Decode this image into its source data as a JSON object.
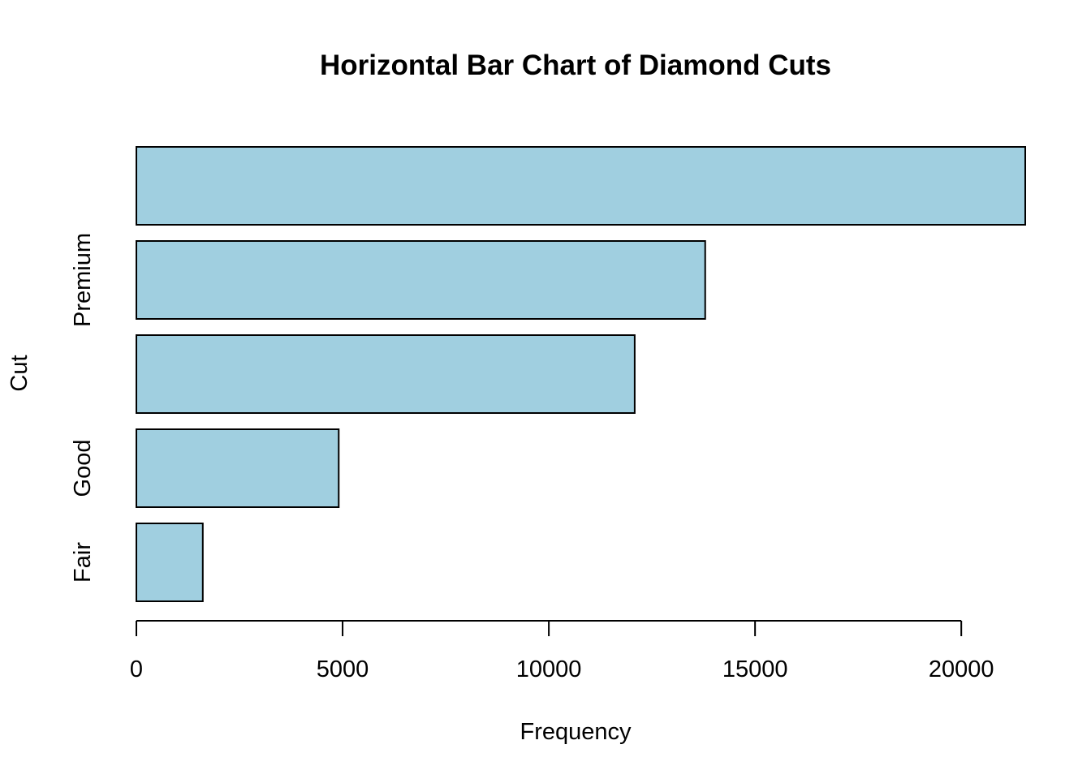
{
  "chart_data": {
    "type": "bar",
    "orientation": "horizontal",
    "title": "Horizontal Bar Chart of Diamond Cuts",
    "xlabel": "Frequency",
    "ylabel": "Cut",
    "categories": [
      "Fair",
      "Good",
      "",
      "Premium",
      ""
    ],
    "values": [
      1610,
      4906,
      12082,
      13791,
      21551
    ],
    "xlim": [
      0,
      21551
    ],
    "x_ticks": [
      0,
      5000,
      10000,
      15000,
      20000
    ],
    "x_tick_labels": [
      "0",
      "5000",
      "10000",
      "15000",
      "20000"
    ],
    "bar_color": "#A0CFE0",
    "border_color": "#000000",
    "grid": false,
    "legend": "none"
  }
}
